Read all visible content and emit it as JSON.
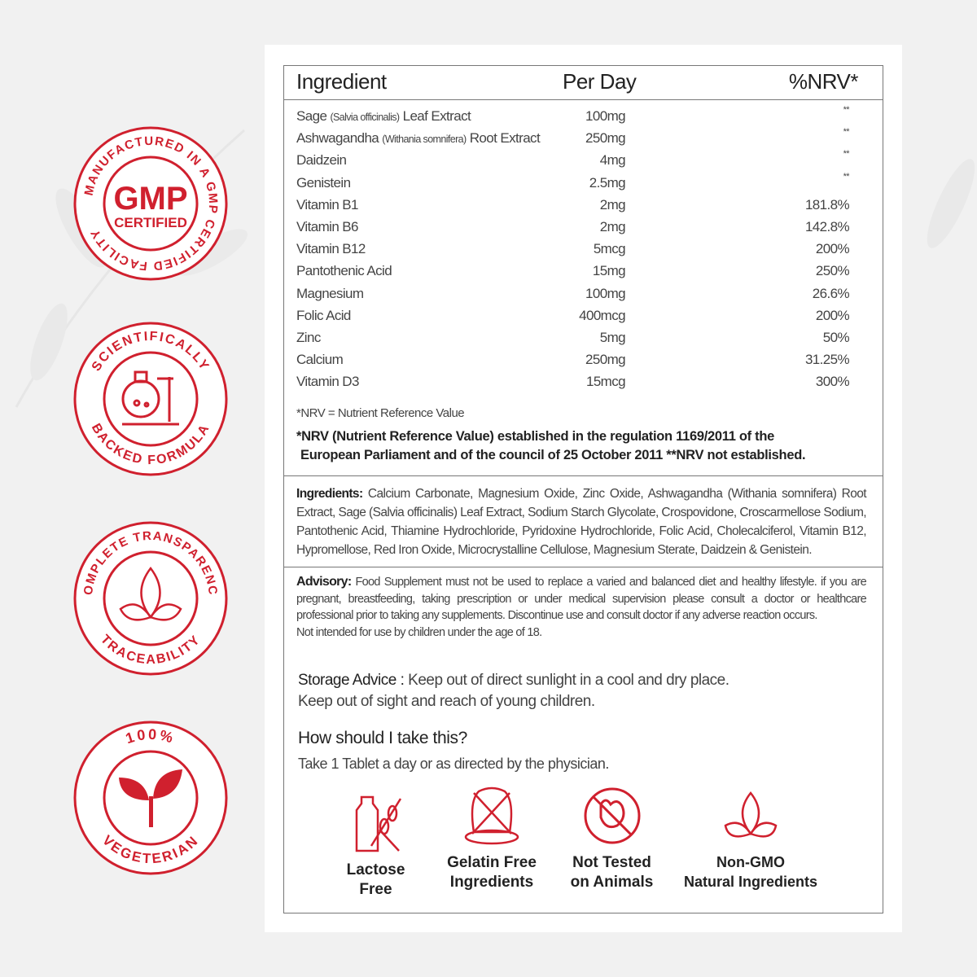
{
  "colors": {
    "accent": "#d0202e",
    "border": "#777777",
    "background": "#f1f1f1"
  },
  "badges": [
    {
      "icon": "gmp-certified-icon",
      "ring_text": "MANUFACTURED IN A GMP CERTIFIED FACILITY",
      "center_title": "GMP",
      "center_sub": "CERTIFIED"
    },
    {
      "icon": "flask-icon",
      "ring_text_top": "SCIENTIFICALLY",
      "ring_text_bottom": "BACKED FORMULA"
    },
    {
      "icon": "leaf-icon",
      "ring_text_top": "COMPLETE TRANSPARENCY",
      "ring_text_bottom": "TRACEABILITY"
    },
    {
      "icon": "sprout-icon",
      "ring_text_top": "100%",
      "ring_text_bottom": "VEGETERIAN"
    }
  ],
  "table": {
    "headers": {
      "ingredient": "Ingredient",
      "per_day": "Per Day",
      "nrv": "%NRV*"
    },
    "rows": [
      {
        "name": "Sage",
        "latin": "(Salvia officinalis)",
        "suffix": "Leaf Extract",
        "per_day": "100mg",
        "nrv": "**"
      },
      {
        "name": "Ashwagandha",
        "latin": "(Withania somnifera)",
        "suffix": "Root Extract",
        "per_day": "250mg",
        "nrv": "**"
      },
      {
        "name": "Daidzein",
        "per_day": "4mg",
        "nrv": "**"
      },
      {
        "name": "Genistein",
        "per_day": "2.5mg",
        "nrv": "**"
      },
      {
        "name": "Vitamin B1",
        "per_day": "2mg",
        "nrv": "181.8%"
      },
      {
        "name": "Vitamin B6",
        "per_day": "2mg",
        "nrv": "142.8%"
      },
      {
        "name": "Vitamin B12",
        "per_day": "5mcg",
        "nrv": "200%"
      },
      {
        "name": "Pantothenic Acid",
        "per_day": "15mg",
        "nrv": "250%"
      },
      {
        "name": "Magnesium",
        "per_day": "100mg",
        "nrv": "26.6%"
      },
      {
        "name": "Folic Acid",
        "per_day": "400mcg",
        "nrv": "200%"
      },
      {
        "name": "Zinc",
        "per_day": "5mg",
        "nrv": "50%"
      },
      {
        "name": "Calcium",
        "per_day": "250mg",
        "nrv": "31.25%"
      },
      {
        "name": "Vitamin D3",
        "per_day": "15mcg",
        "nrv": "300%"
      }
    ],
    "footnote": "*NRV = Nutrient Reference Value",
    "bold_note_1": "*NRV (Nutrient Reference Value) established in the regulation 1169/2011 of the",
    "bold_note_2": "European Parliament and of the  council of 25 October 2011 **NRV not established."
  },
  "ingredients": {
    "label": "Ingredients:",
    "text": "Calcium Carbonate, Magnesium Oxide, Zinc Oxide, Ashwagandha (Withania somnifera) Root Extract, Sage (Salvia officinalis) Leaf Extract, Sodium Starch Glycolate, Crospovidone, Croscarmellose Sodium, Pantothenic Acid, Thiamine Hydrochloride, Pyridoxine Hydrochloride, Folic Acid, Cholecalciferol, Vitamin B12, Hypromellose, Red Iron Oxide, Microcrystalline Cellulose, Magnesium Sterate, Daidzein & Genistein."
  },
  "advisory": {
    "label": "Advisory:",
    "text": "Food Supplement must not be used to replace a varied and balanced diet and healthy lifestyle. if you are pregnant, breastfeeding, taking prescription or under medical supervision please consult a doctor or healthcare professional prior to taking any supplements. Discontinue use and consult doctor if any adverse reaction occurs.",
    "children": "Not intended for use by children under the age of 18."
  },
  "storage": {
    "label": "Storage Advice :",
    "line1": "Keep out of direct sunlight in a cool and dry place.",
    "line2": "Keep out of sight and reach of young children."
  },
  "usage": {
    "question": "How should I take this?",
    "answer": "Take 1 Tablet a day or as directed by the physician."
  },
  "features": [
    {
      "icon": "lactose-free-icon",
      "line1": "Lactose",
      "line2": "Free"
    },
    {
      "icon": "gelatin-free-icon",
      "line1": "Gelatin Free",
      "line2": "Ingredients"
    },
    {
      "icon": "not-tested-on-animals-icon",
      "line1": "Not Tested",
      "line2": "on Animals"
    },
    {
      "icon": "non-gmo-icon",
      "line1": "Non-GMO",
      "line2": "Natural Ingredients"
    }
  ]
}
